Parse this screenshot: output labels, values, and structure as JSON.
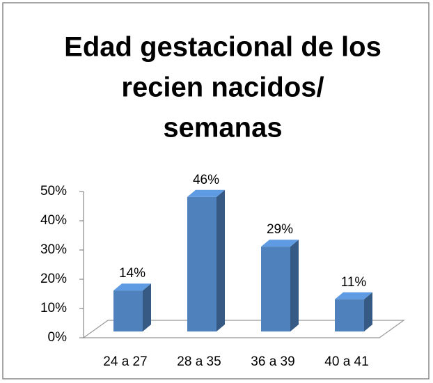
{
  "chart_data": {
    "type": "bar3d",
    "title": [
      "Edad gestacional de los",
      "recien nacidos/",
      "semanas"
    ],
    "categories": [
      "24 a 27",
      "28 a 35",
      "36 a 39",
      "40 a 41"
    ],
    "values": [
      14,
      46,
      29,
      11
    ],
    "value_labels": [
      "14%",
      "46%",
      "29%",
      "11%"
    ],
    "color": "#4f81bd",
    "ylim": [
      0,
      50
    ],
    "yticks": [
      {
        "value": 0,
        "label": "0%"
      },
      {
        "value": 10,
        "label": "10%"
      },
      {
        "value": 20,
        "label": "20%"
      },
      {
        "value": 30,
        "label": "30%"
      },
      {
        "value": 40,
        "label": "40%"
      },
      {
        "value": 50,
        "label": "50%"
      }
    ]
  }
}
